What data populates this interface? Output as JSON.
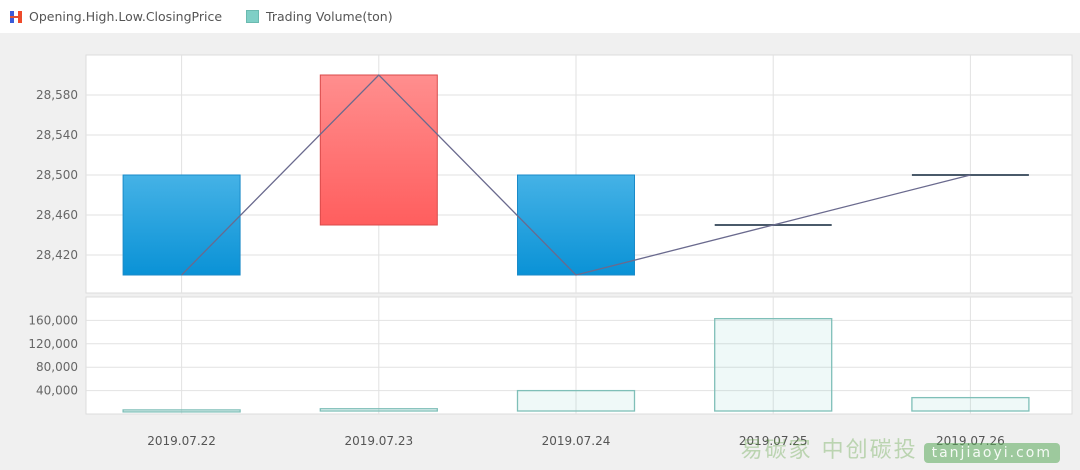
{
  "legend": [
    {
      "label": "Opening.High.Low.ClosingPrice",
      "icon": "candlestick-icon"
    },
    {
      "label": "Trading Volume(ton)",
      "icon": "volume-bar-icon"
    }
  ],
  "colors": {
    "up": "#ff6a6a",
    "down": "#1a9ad8",
    "close_line": "#6a6a8e",
    "volume": "#7fbfb8",
    "grid": "#e2e2e2"
  },
  "chart_data": [
    {
      "type": "candlestick",
      "categories": [
        "2019.07.22",
        "2019.07.23",
        "2019.07.24",
        "2019.07.25",
        "2019.07.26"
      ],
      "open": [
        28500,
        28450,
        28500,
        28450,
        28500
      ],
      "high": [
        28500,
        28600,
        28500,
        28450,
        28500
      ],
      "low": [
        28400,
        28450,
        28400,
        28450,
        28500
      ],
      "close": [
        28400,
        28600,
        28400,
        28450,
        28500
      ],
      "yticks": [
        "28,420",
        "28,460",
        "28,500",
        "28,540",
        "28,580"
      ],
      "ytick_values": [
        28420,
        28460,
        28500,
        28540,
        28580
      ],
      "ylim": [
        28382,
        28620
      ],
      "close_line": true,
      "grid": true
    },
    {
      "type": "bar",
      "categories": [
        "2019.07.22",
        "2019.07.23",
        "2019.07.24",
        "2019.07.25",
        "2019.07.26"
      ],
      "values": [
        7000,
        9000,
        40000,
        163000,
        28000
      ],
      "yticks": [
        "40,000",
        "80,000",
        "120,000",
        "160,000"
      ],
      "ytick_values": [
        40000,
        80000,
        120000,
        160000
      ],
      "ylim": [
        0,
        200000
      ],
      "grid": true
    }
  ],
  "watermark": {
    "text": "易碳家 中创碳投",
    "site": "tanjiaoyi.com"
  }
}
